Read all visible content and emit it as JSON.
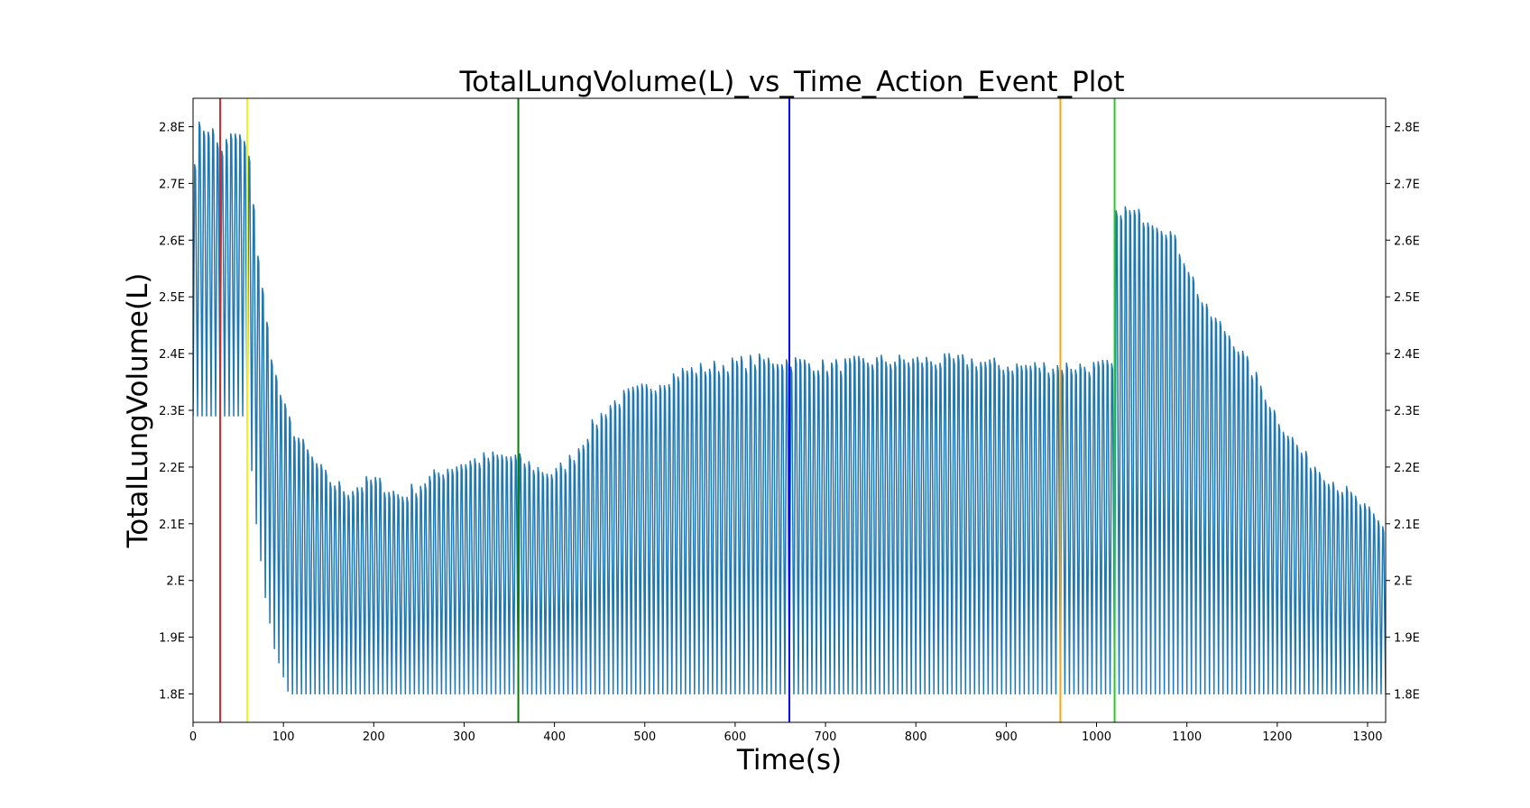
{
  "chart_data": {
    "type": "line",
    "title": "TotalLungVolume(L)_vs_Time_Action_Event_Plot",
    "xlabel": "Time(s)",
    "ylabel": "TotalLungVolume(L)",
    "xlim": [
      0,
      1320
    ],
    "ylim": [
      1.75,
      2.85
    ],
    "x_ticks": [
      0,
      100,
      200,
      300,
      400,
      500,
      600,
      700,
      800,
      900,
      1000,
      1100,
      1200,
      1300
    ],
    "y_ticks": [
      {
        "value": 1.8,
        "label": "1.8E"
      },
      {
        "value": 1.9,
        "label": "1.9E"
      },
      {
        "value": 2.0,
        "label": "2.E"
      },
      {
        "value": 2.1,
        "label": "2.1E"
      },
      {
        "value": 2.2,
        "label": "2.2E"
      },
      {
        "value": 2.3,
        "label": "2.3E"
      },
      {
        "value": 2.4,
        "label": "2.4E"
      },
      {
        "value": 2.5,
        "label": "2.5E"
      },
      {
        "value": 2.6,
        "label": "2.6E"
      },
      {
        "value": 2.7,
        "label": "2.7E"
      },
      {
        "value": 2.8,
        "label": "2.8E"
      }
    ],
    "grid": false,
    "series_color": "#1f77b4",
    "breath_period_s": 5,
    "peak_envelope": {
      "time": [
        0,
        5,
        20,
        30,
        45,
        55,
        60,
        65,
        70,
        80,
        90,
        100,
        110,
        130,
        150,
        170,
        200,
        230,
        250,
        280,
        300,
        330,
        355,
        380,
        400,
        420,
        440,
        460,
        480,
        500,
        540,
        580,
        620,
        660,
        700,
        760,
        800,
        860,
        900,
        960,
        1000,
        1018,
        1022,
        1040,
        1060,
        1080,
        1100,
        1120,
        1150,
        1180,
        1200,
        1230,
        1260,
        1290,
        1320
      ],
      "value": [
        2.72,
        2.8,
        2.8,
        2.76,
        2.79,
        2.78,
        2.76,
        2.71,
        2.6,
        2.47,
        2.37,
        2.31,
        2.27,
        2.22,
        2.18,
        2.16,
        2.18,
        2.15,
        2.17,
        2.2,
        2.21,
        2.22,
        2.22,
        2.2,
        2.19,
        2.22,
        2.27,
        2.31,
        2.33,
        2.34,
        2.37,
        2.38,
        2.39,
        2.39,
        2.38,
        2.39,
        2.39,
        2.39,
        2.38,
        2.38,
        2.38,
        2.38,
        2.66,
        2.65,
        2.64,
        2.62,
        2.56,
        2.48,
        2.43,
        2.35,
        2.29,
        2.22,
        2.18,
        2.14,
        2.09
      ]
    },
    "trough_envelope": {
      "time": [
        0,
        58,
        62,
        70,
        80,
        90,
        100,
        106,
        1320
      ],
      "value": [
        2.29,
        2.29,
        2.25,
        2.1,
        1.97,
        1.88,
        1.83,
        1.8,
        1.8
      ]
    },
    "event_lines": [
      {
        "x": 30,
        "color": "#d62728"
      },
      {
        "x": 60,
        "color": "#f2f21a"
      },
      {
        "x": 360,
        "color": "#0a7a0a"
      },
      {
        "x": 660,
        "color": "#0000ff"
      },
      {
        "x": 960,
        "color": "#ffa500"
      },
      {
        "x": 1020,
        "color": "#22cc22"
      }
    ]
  }
}
